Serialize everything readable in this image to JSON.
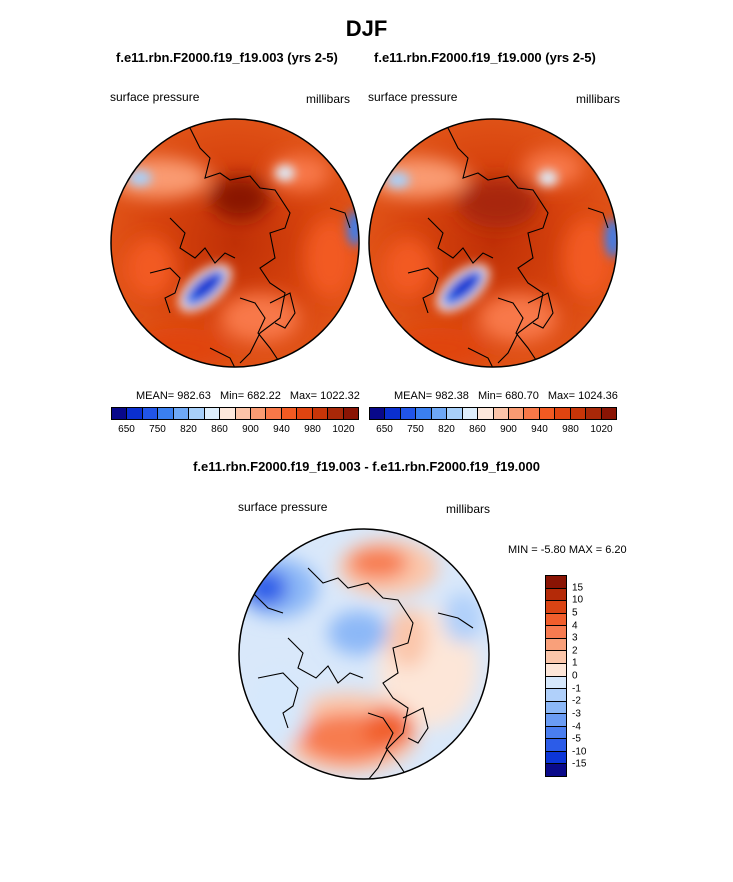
{
  "title": "DJF",
  "units_label": "millibars",
  "variable_label": "surface pressure",
  "colors": {
    "abs_scale": [
      "#08088a",
      "#0a2fd0",
      "#2155e8",
      "#3a7ff0",
      "#6ea8f6",
      "#a8d0fa",
      "#deeefc",
      "#fde8dc",
      "#fcc4a8",
      "#fa9b72",
      "#f87848",
      "#f25a22",
      "#e04410",
      "#c83508",
      "#a82808",
      "#8a1404"
    ],
    "diff_scale": [
      "#0a0a8a",
      "#0c36d8",
      "#2c5ce8",
      "#4a7ef0",
      "#6a9cf4",
      "#8cb8f7",
      "#b0d0fa",
      "#d6e8fc",
      "#fde6d8",
      "#fbc6aa",
      "#f9a07a",
      "#f77b50",
      "#f15e2c",
      "#da4414",
      "#b42a08",
      "#8a1404"
    ]
  },
  "panels": [
    {
      "case": "f.e11.rbn.F2000.f19_f19.003 (yrs 2-5)",
      "stats": {
        "mean": "MEAN= 982.63",
        "min": "Min= 682.22",
        "max": "Max= 1022.32"
      }
    },
    {
      "case": "f.e11.rbn.F2000.f19_f19.000 (yrs 2-5)",
      "stats": {
        "mean": "MEAN= 982.38",
        "min": "Min= 680.70",
        "max": "Max= 1024.36"
      }
    }
  ],
  "diff": {
    "title": "f.e11.rbn.F2000.f19_f19.003 - f.e11.rbn.F2000.f19_f19.000",
    "minmax": "MIN =  -5.80 MAX =   6.20"
  },
  "chart_data": [
    {
      "type": "heatmap",
      "title": "f.e11.rbn.F2000.f19_f19.003 (yrs 2-5)",
      "variable": "surface pressure",
      "units": "millibars",
      "projection": "north polar stereographic",
      "colorbar_ticks": [
        "650",
        "750",
        "820",
        "860",
        "900",
        "940",
        "980",
        "1020"
      ],
      "mean": 982.63,
      "min": 682.22,
      "max": 1022.32
    },
    {
      "type": "heatmap",
      "title": "f.e11.rbn.F2000.f19_f19.000 (yrs 2-5)",
      "variable": "surface pressure",
      "units": "millibars",
      "projection": "north polar stereographic",
      "colorbar_ticks": [
        "650",
        "750",
        "820",
        "860",
        "900",
        "940",
        "980",
        "1020"
      ],
      "mean": 982.38,
      "min": 680.7,
      "max": 1024.36
    },
    {
      "type": "heatmap",
      "title": "f.e11.rbn.F2000.f19_f19.003 - f.e11.rbn.F2000.f19_f19.000",
      "variable": "surface pressure",
      "units": "millibars",
      "projection": "north polar stereographic",
      "colorbar_ticks": [
        "15",
        "10",
        "5",
        "4",
        "3",
        "2",
        "1",
        "0",
        "-1",
        "-2",
        "-3",
        "-4",
        "-5",
        "-10",
        "-15"
      ],
      "min": -5.8,
      "max": 6.2
    }
  ]
}
